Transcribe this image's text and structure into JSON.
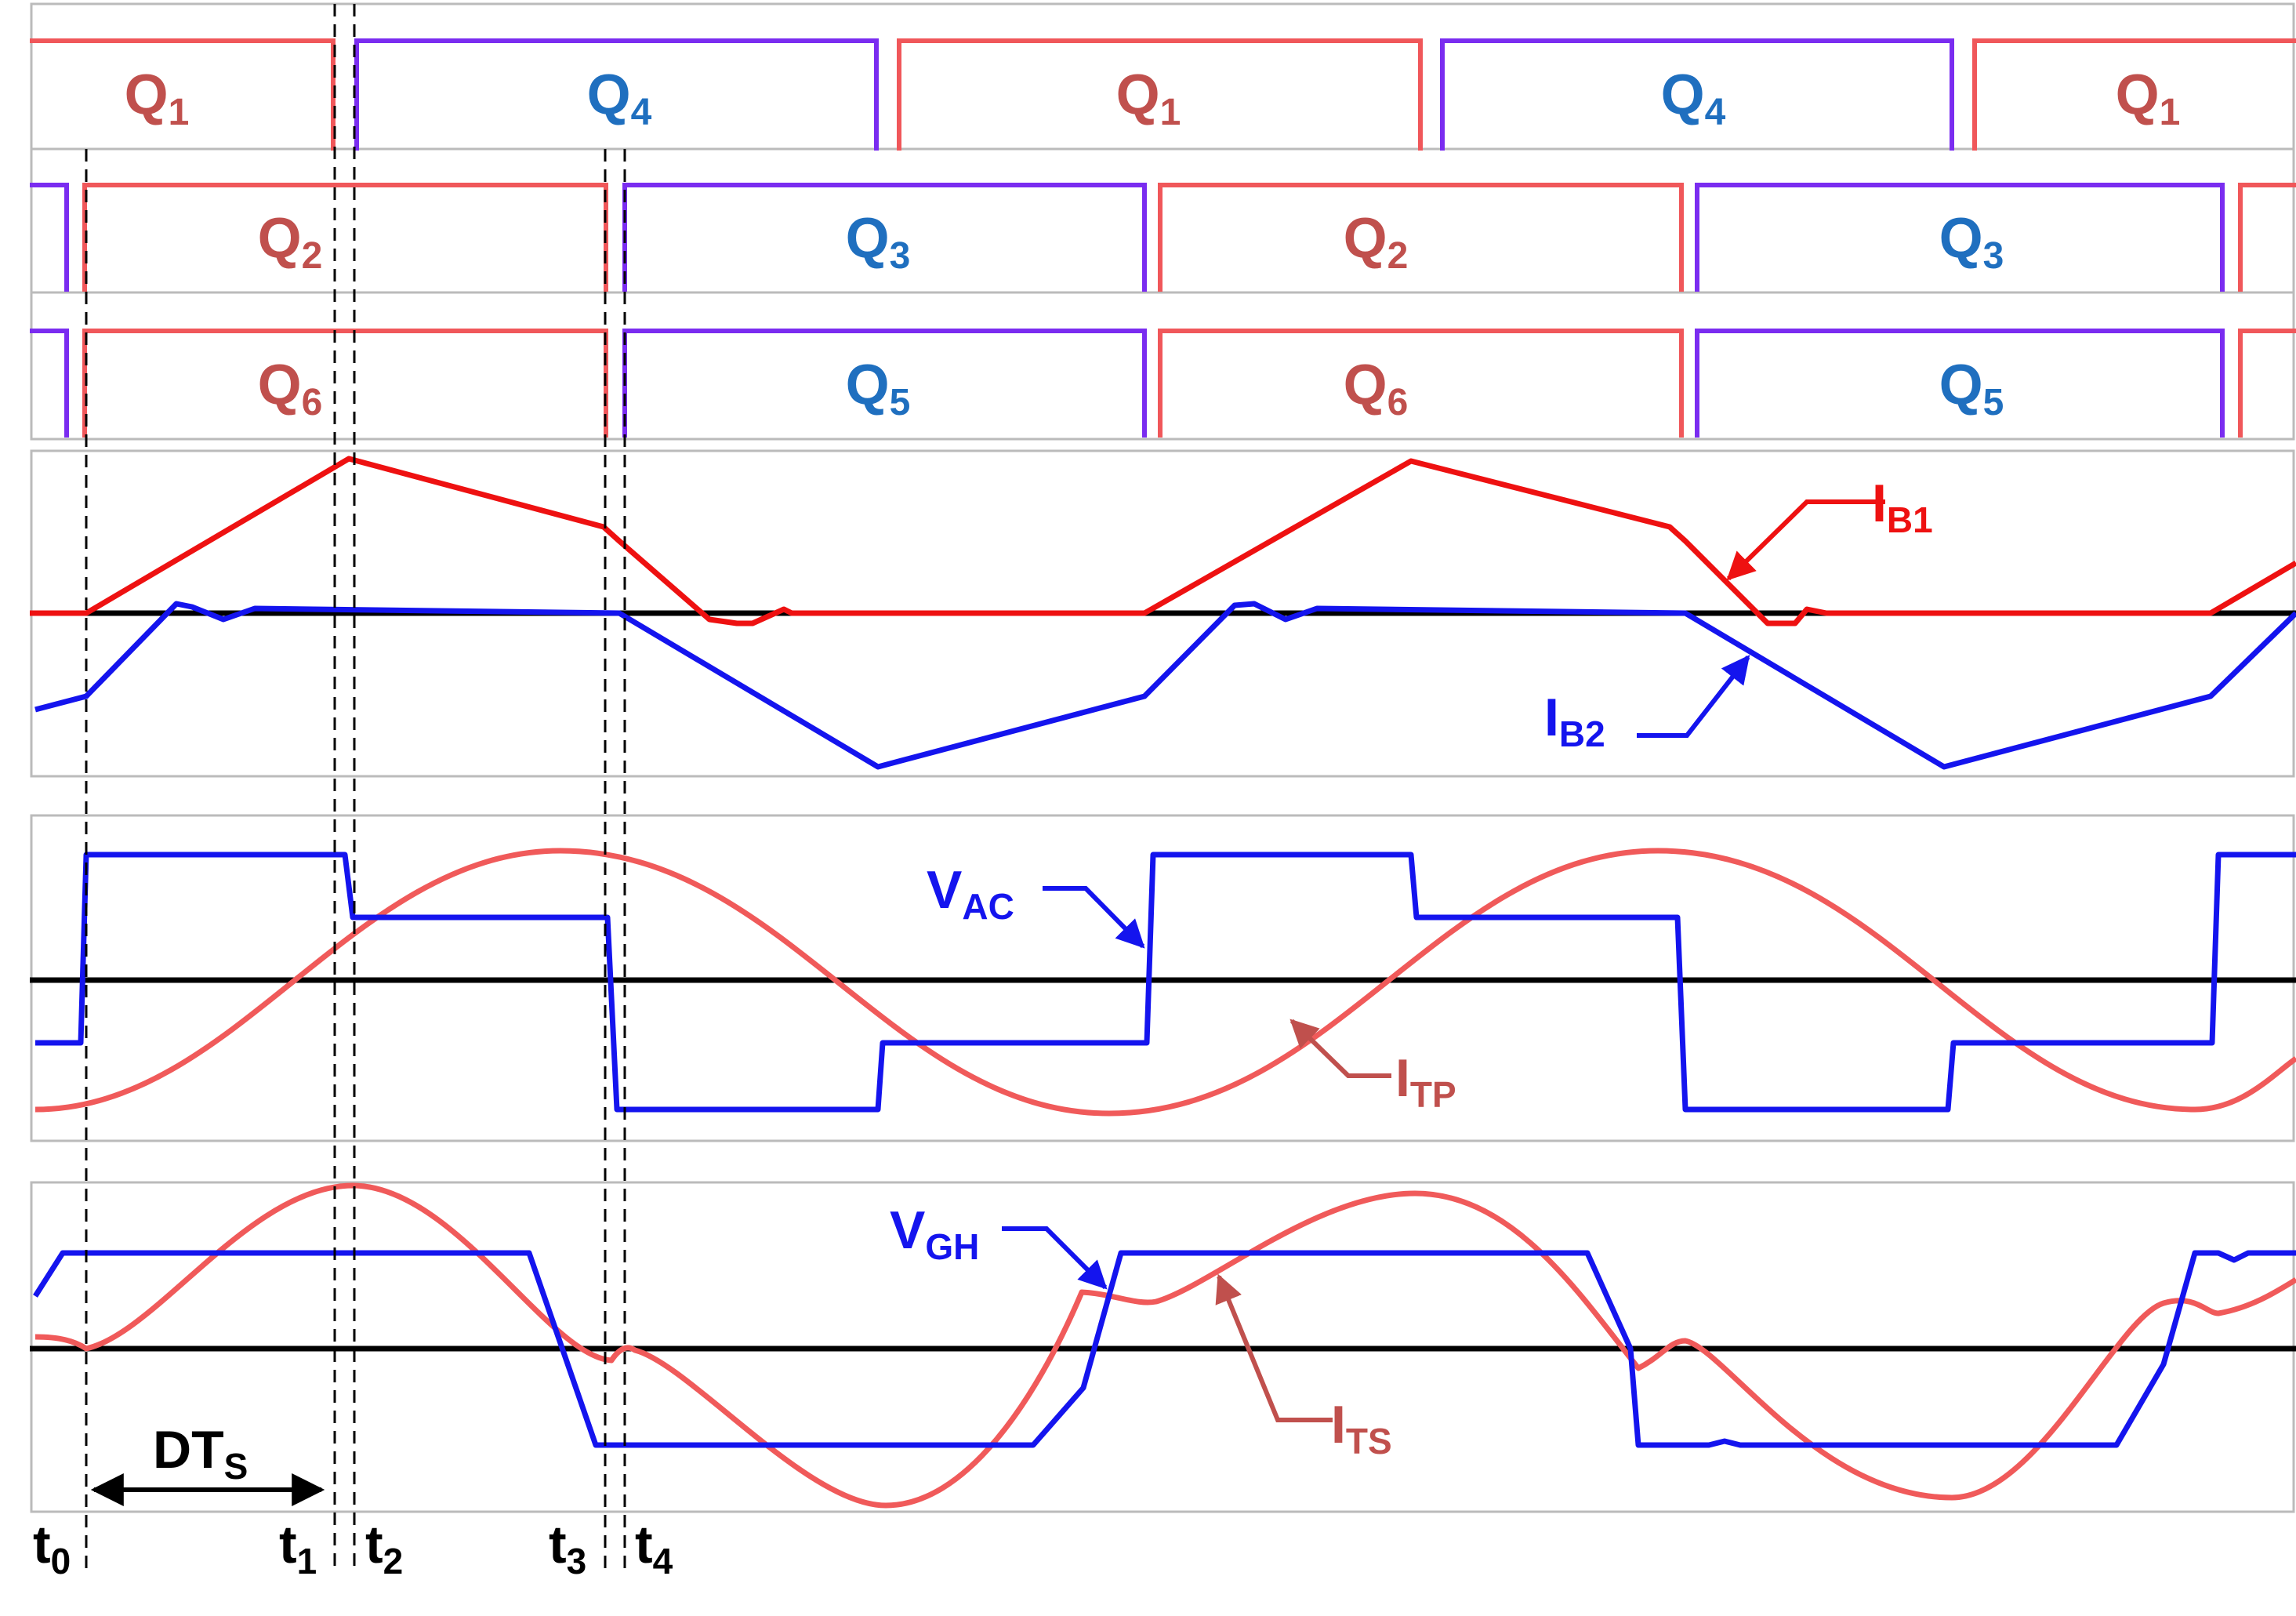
{
  "gates": {
    "row1": [
      "Q1",
      "Q4",
      "Q1",
      "Q4",
      "Q1"
    ],
    "row2": [
      "Q2",
      "Q3",
      "Q2",
      "Q3"
    ],
    "row3": [
      "Q6",
      "Q5",
      "Q6",
      "Q5"
    ]
  },
  "gate_labels": {
    "Q1": {
      "base": "Q",
      "sub": "1"
    },
    "Q2": {
      "base": "Q",
      "sub": "2"
    },
    "Q3": {
      "base": "Q",
      "sub": "3"
    },
    "Q4": {
      "base": "Q",
      "sub": "4"
    },
    "Q5": {
      "base": "Q",
      "sub": "5"
    },
    "Q6": {
      "base": "Q",
      "sub": "6"
    }
  },
  "signals": {
    "ib1": {
      "base": "I",
      "sub": "B1"
    },
    "ib2": {
      "base": "I",
      "sub": "B2"
    },
    "vac": {
      "base": "V",
      "sub": "AC"
    },
    "itp": {
      "base": "I",
      "sub": "TP"
    },
    "vgh": {
      "base": "V",
      "sub": "GH"
    },
    "its": {
      "base": "I",
      "sub": "TS"
    }
  },
  "duty": {
    "base": "DT",
    "sub": "S"
  },
  "time_marks": [
    {
      "base": "t",
      "sub": "0"
    },
    {
      "base": "t",
      "sub": "1"
    },
    {
      "base": "t",
      "sub": "2"
    },
    {
      "base": "t",
      "sub": "3"
    },
    {
      "base": "t",
      "sub": "4"
    }
  ],
  "colors": {
    "q_odd_text": "#c0504d",
    "q_even_text": "#1f6fbf",
    "gate_red": "#f0575a",
    "gate_purple": "#7a2cf0",
    "ib1": "#ee1111",
    "blue": "#1414ee",
    "salmon": "#f05a5a",
    "salmon_label": "#c0504d",
    "axis": "#000000",
    "frame": "#bbbbbb"
  }
}
